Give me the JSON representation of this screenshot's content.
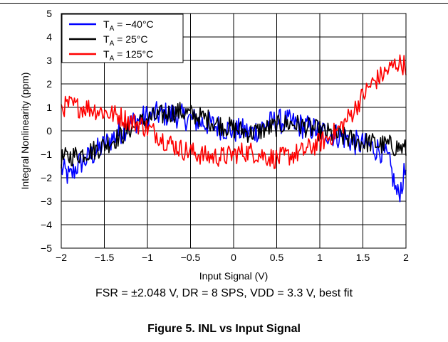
{
  "conditions_note": "FSR = ±2.048 V, DR = 8 SPS, VDD = 3.3 V, best fit",
  "figure_caption": "Figure 5. INL vs Input Signal",
  "chart_data": {
    "type": "line",
    "xlabel": "Input Signal (V)",
    "ylabel": "Integral Nonlinearity (ppm)",
    "xlim": [
      -2,
      2
    ],
    "ylim": [
      -5,
      5
    ],
    "xticks": [
      -2,
      -1.5,
      -1,
      -0.5,
      0,
      0.5,
      1,
      1.5,
      2
    ],
    "xtick_labels": [
      "−2",
      "−1.5",
      "−1",
      "−0.5",
      "0",
      "0.5",
      "1",
      "1.5",
      "2"
    ],
    "yticks": [
      -5,
      -4,
      -3,
      -2,
      -1,
      0,
      1,
      2,
      3,
      4,
      5
    ],
    "ytick_labels": [
      "−5",
      "−4",
      "−3",
      "−2",
      "−1",
      "0",
      "1",
      "2",
      "3",
      "4",
      "5"
    ],
    "grid": true,
    "legend_position": "top-left",
    "series": [
      {
        "name": "T",
        "name_subscript": "A",
        "name_suffix": " = −40°C",
        "color": "#0000ff",
        "x": [
          -2,
          -1.9,
          -1.8,
          -1.7,
          -1.6,
          -1.5,
          -1.4,
          -1.3,
          -1.2,
          -1.1,
          -1.0,
          -0.9,
          -0.8,
          -0.7,
          -0.6,
          -0.5,
          -0.4,
          -0.3,
          -0.2,
          -0.1,
          0.0,
          0.1,
          0.2,
          0.3,
          0.4,
          0.5,
          0.6,
          0.7,
          0.8,
          0.9,
          1.0,
          1.1,
          1.2,
          1.3,
          1.4,
          1.5,
          1.6,
          1.7,
          1.75,
          1.8,
          1.85,
          1.9,
          1.95,
          2.0
        ],
        "y": [
          -1.6,
          -2.0,
          -1.4,
          -1.2,
          -0.9,
          -0.6,
          -0.3,
          0.0,
          0.3,
          0.5,
          0.6,
          0.7,
          0.7,
          0.7,
          0.6,
          0.5,
          0.4,
          0.3,
          0.2,
          0.1,
          0.0,
          0.0,
          -0.1,
          0.1,
          0.3,
          0.4,
          0.4,
          0.3,
          0.2,
          0.1,
          0.0,
          -0.1,
          -0.2,
          -0.3,
          -0.5,
          -0.6,
          -0.7,
          -0.8,
          -1.0,
          -1.3,
          -2.0,
          -2.8,
          -2.3,
          -1.6
        ]
      },
      {
        "name": "T",
        "name_subscript": "A",
        "name_suffix": " = 25°C",
        "color": "#000000",
        "x": [
          -2,
          -1.9,
          -1.8,
          -1.7,
          -1.6,
          -1.5,
          -1.4,
          -1.3,
          -1.2,
          -1.1,
          -1.0,
          -0.9,
          -0.8,
          -0.7,
          -0.6,
          -0.5,
          -0.4,
          -0.3,
          -0.2,
          -0.1,
          0.0,
          0.1,
          0.2,
          0.3,
          0.4,
          0.5,
          0.6,
          0.7,
          0.8,
          0.9,
          1.0,
          1.1,
          1.2,
          1.3,
          1.4,
          1.5,
          1.6,
          1.7,
          1.8,
          1.9,
          2.0
        ],
        "y": [
          -1.2,
          -1.1,
          -1.0,
          -0.9,
          -0.8,
          -0.6,
          -0.4,
          -0.2,
          0.1,
          0.3,
          0.5,
          0.6,
          0.7,
          0.8,
          0.8,
          0.7,
          0.6,
          0.5,
          0.3,
          0.2,
          0.1,
          0.0,
          -0.1,
          0.0,
          0.1,
          0.2,
          0.3,
          0.3,
          0.2,
          0.1,
          0.0,
          -0.1,
          -0.2,
          -0.3,
          -0.4,
          -0.5,
          -0.5,
          -0.6,
          -0.6,
          -0.7,
          -0.8
        ]
      },
      {
        "name": "T",
        "name_subscript": "A",
        "name_suffix": " = 125°C",
        "color": "#ff0000",
        "x": [
          -2,
          -1.9,
          -1.8,
          -1.7,
          -1.6,
          -1.5,
          -1.4,
          -1.3,
          -1.2,
          -1.1,
          -1.0,
          -0.9,
          -0.8,
          -0.7,
          -0.6,
          -0.5,
          -0.4,
          -0.3,
          -0.2,
          -0.1,
          0.0,
          0.1,
          0.2,
          0.3,
          0.4,
          0.5,
          0.6,
          0.7,
          0.8,
          0.9,
          1.0,
          1.1,
          1.2,
          1.3,
          1.4,
          1.5,
          1.6,
          1.7,
          1.8,
          1.9,
          2.0
        ],
        "y": [
          1.0,
          1.1,
          1.0,
          1.0,
          0.9,
          0.8,
          0.7,
          0.6,
          0.4,
          0.3,
          0.1,
          -0.1,
          -0.4,
          -0.6,
          -0.8,
          -0.9,
          -1.0,
          -1.1,
          -1.1,
          -1.1,
          -1.0,
          -0.9,
          -0.9,
          -1.0,
          -1.1,
          -1.2,
          -1.1,
          -1.0,
          -0.9,
          -0.7,
          -0.5,
          -0.3,
          0.0,
          0.4,
          0.9,
          1.5,
          2.0,
          2.3,
          2.6,
          2.9,
          2.8
        ]
      }
    ]
  }
}
